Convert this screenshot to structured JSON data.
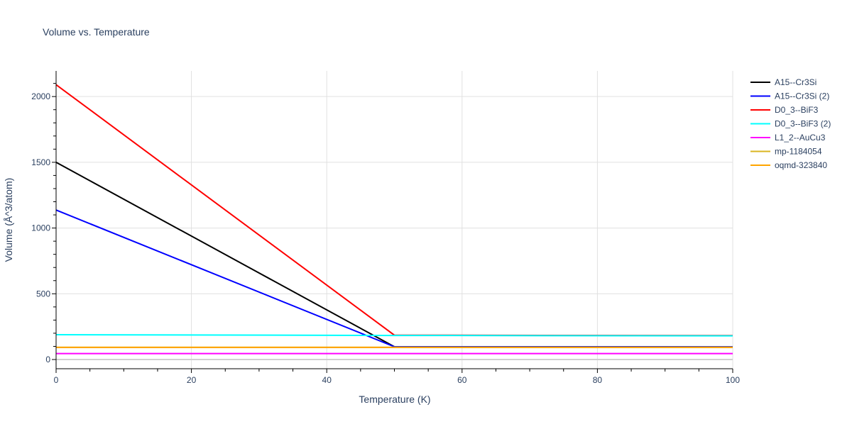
{
  "chart_data": {
    "type": "line",
    "title": "Volume vs. Temperature",
    "xlabel": "Temperature (K)",
    "ylabel": "Volume (Å^3/atom)",
    "xlim": [
      0,
      100
    ],
    "ylim": [
      -70,
      2195
    ],
    "xticks": [
      0,
      20,
      40,
      60,
      80,
      100
    ],
    "yticks": [
      0,
      500,
      1000,
      1500,
      2000
    ],
    "grid": true,
    "legend": "right",
    "series": [
      {
        "name": "A15--Cr3Si",
        "color": "#000000",
        "x": [
          0,
          50,
          100
        ],
        "y": [
          1500,
          97,
          96
        ]
      },
      {
        "name": "A15--Cr3Si (2)",
        "color": "#0000ff",
        "x": [
          0,
          50,
          100
        ],
        "y": [
          1137,
          97,
          96
        ]
      },
      {
        "name": "D0_3--BiF3",
        "color": "#ff0000",
        "x": [
          0,
          50,
          100
        ],
        "y": [
          2090,
          185,
          182
        ]
      },
      {
        "name": "D0_3--BiF3 (2)",
        "color": "#00ffff",
        "x": [
          0,
          50,
          100
        ],
        "y": [
          189,
          183,
          180
        ]
      },
      {
        "name": "L1_2--AuCu3",
        "color": "#ff00ff",
        "x": [
          0,
          50,
          100
        ],
        "y": [
          45,
          45,
          45
        ]
      },
      {
        "name": "mp-1184054",
        "color": "#dab520",
        "x": [
          0,
          50,
          100
        ],
        "y": [
          93,
          93,
          93
        ]
      },
      {
        "name": "oqmd-323840",
        "color": "#ffa500",
        "x": [
          0,
          50,
          100
        ],
        "y": [
          92,
          92,
          92
        ]
      }
    ]
  }
}
